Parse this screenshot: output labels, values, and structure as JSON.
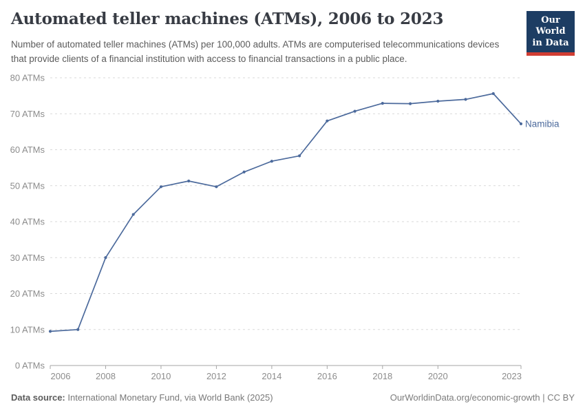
{
  "header": {
    "title": "Automated teller machines (ATMs), 2006 to 2023",
    "subtitle": "Number of automated teller machines (ATMs) per 100,000 adults. ATMs are computerised telecommunications devices that provide clients of a financial institution with access to financial transactions in a public place.",
    "logo": {
      "line1": "Our World",
      "line2": "in Data",
      "bg_color": "#1d3d63",
      "accent_color": "#d13d33"
    }
  },
  "chart_data": {
    "type": "line",
    "title": "Automated teller machines (ATMs), 2006 to 2023",
    "x": [
      2006,
      2007,
      2008,
      2009,
      2010,
      2011,
      2012,
      2013,
      2014,
      2015,
      2016,
      2017,
      2018,
      2019,
      2020,
      2021,
      2022,
      2023
    ],
    "series": [
      {
        "name": "Namibia",
        "color": "#4c6a9c",
        "values": [
          9.5,
          10,
          30,
          42,
          49.7,
          51.3,
          49.7,
          53.8,
          56.8,
          58.3,
          68,
          70.7,
          72.9,
          72.8,
          73.5,
          74,
          75.6,
          67.2
        ]
      }
    ],
    "end_label": "Namibia",
    "xlabel": "",
    "ylabel": "",
    "xlim": [
      2006,
      2023
    ],
    "ylim": [
      0,
      80
    ],
    "x_ticks": [
      2006,
      2008,
      2010,
      2012,
      2014,
      2016,
      2018,
      2020,
      2023
    ],
    "y_ticks": [
      0,
      10,
      20,
      30,
      40,
      50,
      60,
      70,
      80
    ],
    "y_tick_format": "{v} ATMs",
    "grid": {
      "horizontal": true,
      "style": "dashed",
      "color": "#d9d9d9"
    },
    "axis_color": "#a5a5a5",
    "tick_label_color": "#8c8c8c",
    "legend_position": "end-of-line"
  },
  "footer": {
    "datasource_label": "Data source:",
    "datasource_value": " International Monetary Fund, via World Bank (2025)",
    "credit": "OurWorldinData.org/economic-growth | CC BY"
  }
}
